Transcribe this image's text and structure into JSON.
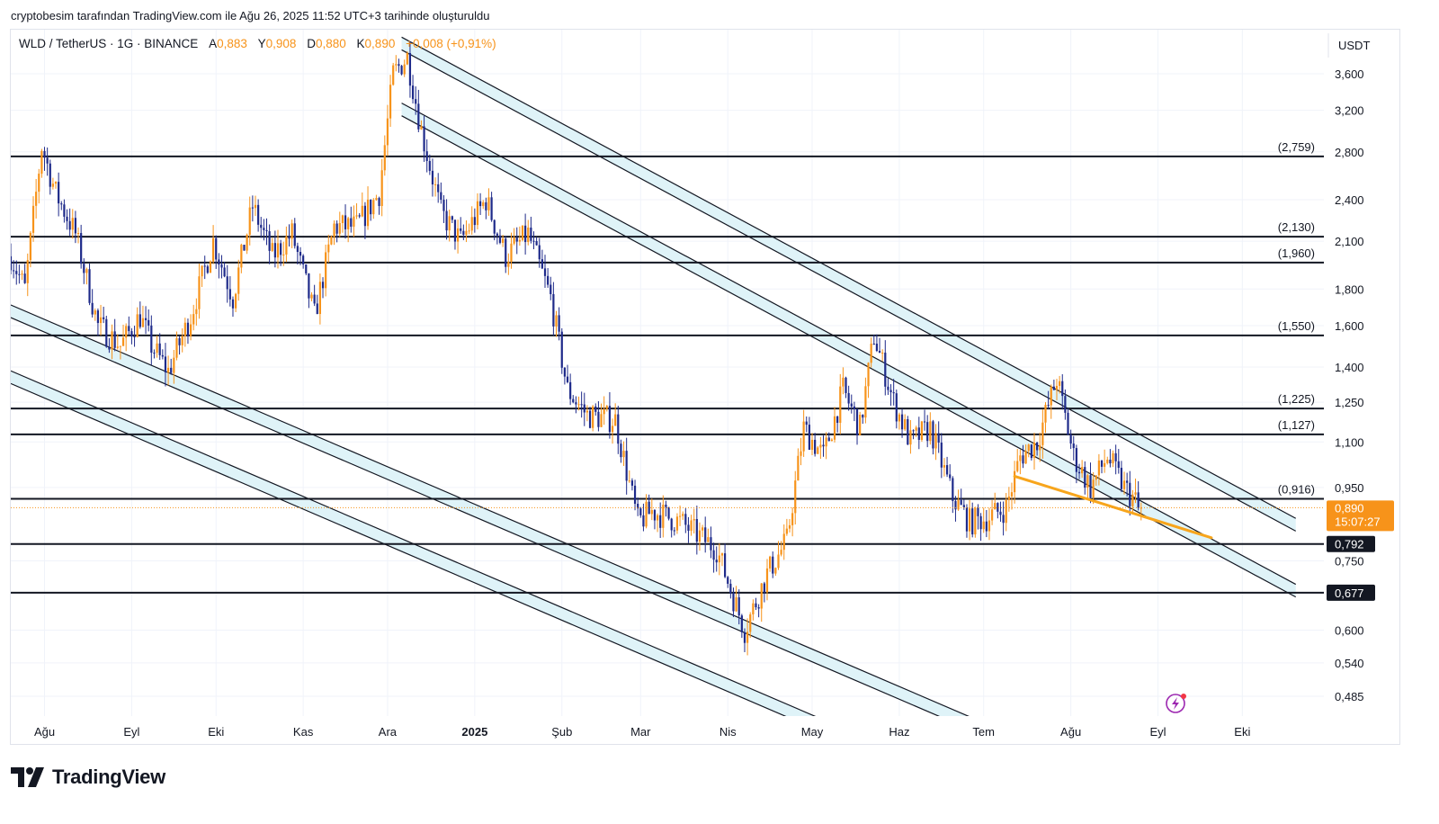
{
  "attribution": "cryptobesim tarafından TradingView.com ile Ağu 26, 2025 11:52 UTC+3 tarihinde oluşturuldu",
  "legend": {
    "symbol": "WLD / TetherUS · 1G · BINANCE",
    "open_label": "A",
    "open": "0,883",
    "high_label": "Y",
    "high": "0,908",
    "low_label": "D",
    "low": "0,880",
    "close_label": "K",
    "close": "0,890",
    "change": "+0,008 (+0,91%)"
  },
  "brand": {
    "name": "TradingView",
    "icon": "tradingview-logo-icon"
  },
  "colors": {
    "up": "#f7931a",
    "down": "#1e2a8a",
    "channel_fill": "#dff3f8",
    "trendline": "#f7a51c",
    "price_tag": "#f7931a"
  },
  "chart_data": {
    "type": "candlestick",
    "currency": "USDT",
    "scale": "log",
    "ylim": [
      0.45,
      4.1
    ],
    "y_ticks": [
      {
        "value": 3.6,
        "label": "3,600"
      },
      {
        "value": 3.2,
        "label": "3,200"
      },
      {
        "value": 2.8,
        "label": "2,800"
      },
      {
        "value": 2.4,
        "label": "2,400"
      },
      {
        "value": 2.1,
        "label": "2,100"
      },
      {
        "value": 1.8,
        "label": "1,800"
      },
      {
        "value": 1.6,
        "label": "1,600"
      },
      {
        "value": 1.4,
        "label": "1,400"
      },
      {
        "value": 1.25,
        "label": "1,250"
      },
      {
        "value": 1.1,
        "label": "1,100"
      },
      {
        "value": 0.95,
        "label": "0,950"
      },
      {
        "value": 0.75,
        "label": "0,750"
      },
      {
        "value": 0.6,
        "label": "0,600"
      },
      {
        "value": 0.54,
        "label": "0,540"
      },
      {
        "value": 0.485,
        "label": "0,485"
      }
    ],
    "x_ticks": [
      {
        "date": "2024-08-01",
        "label": "Ağu",
        "bold": false
      },
      {
        "date": "2024-09-01",
        "label": "Eyl",
        "bold": false
      },
      {
        "date": "2024-10-01",
        "label": "Eki",
        "bold": false
      },
      {
        "date": "2024-11-01",
        "label": "Kas",
        "bold": false
      },
      {
        "date": "2024-12-01",
        "label": "Ara",
        "bold": false
      },
      {
        "date": "2025-01-01",
        "label": "2025",
        "bold": true
      },
      {
        "date": "2025-02-01",
        "label": "Şub",
        "bold": false
      },
      {
        "date": "2025-03-01",
        "label": "Mar",
        "bold": false
      },
      {
        "date": "2025-04-01",
        "label": "Nis",
        "bold": false
      },
      {
        "date": "2025-05-01",
        "label": "May",
        "bold": false
      },
      {
        "date": "2025-06-01",
        "label": "Haz",
        "bold": false
      },
      {
        "date": "2025-07-01",
        "label": "Tem",
        "bold": false
      },
      {
        "date": "2025-08-01",
        "label": "Ağu",
        "bold": false
      },
      {
        "date": "2025-09-01",
        "label": "Eyl",
        "bold": false
      },
      {
        "date": "2025-10-01",
        "label": "Eki",
        "bold": false
      }
    ],
    "levels": [
      {
        "value": 2.759,
        "label": "(2,759)"
      },
      {
        "value": 2.13,
        "label": "(2,130)"
      },
      {
        "value": 1.96,
        "label": "(1,960)"
      },
      {
        "value": 1.55,
        "label": "(1,550)"
      },
      {
        "value": 1.225,
        "label": "(1,225)"
      },
      {
        "value": 1.127,
        "label": "(1,127)"
      },
      {
        "value": 0.916,
        "label": "(0,916)"
      },
      {
        "value": 0.792,
        "label": "0,792",
        "tag": true
      },
      {
        "value": 0.677,
        "label": "0,677",
        "tag": true
      }
    ],
    "last_price": {
      "value": 0.89,
      "label": "0,890",
      "countdown": "15:07:27"
    },
    "price_path": [
      {
        "date": "2024-07-20",
        "price": 2.0
      },
      {
        "date": "2024-07-25",
        "price": 1.8
      },
      {
        "date": "2024-07-31",
        "price": 2.85
      },
      {
        "date": "2024-08-05",
        "price": 2.45
      },
      {
        "date": "2024-08-12",
        "price": 2.15
      },
      {
        "date": "2024-08-20",
        "price": 1.6
      },
      {
        "date": "2024-08-28",
        "price": 1.5
      },
      {
        "date": "2024-09-04",
        "price": 1.65
      },
      {
        "date": "2024-09-08",
        "price": 1.5
      },
      {
        "date": "2024-09-14",
        "price": 1.38
      },
      {
        "date": "2024-09-22",
        "price": 1.65
      },
      {
        "date": "2024-09-30",
        "price": 2.1
      },
      {
        "date": "2024-10-07",
        "price": 1.75
      },
      {
        "date": "2024-10-14",
        "price": 2.35
      },
      {
        "date": "2024-10-21",
        "price": 2.0
      },
      {
        "date": "2024-10-28",
        "price": 2.15
      },
      {
        "date": "2024-11-05",
        "price": 1.65
      },
      {
        "date": "2024-11-12",
        "price": 2.2
      },
      {
        "date": "2024-11-20",
        "price": 2.2
      },
      {
        "date": "2024-11-28",
        "price": 2.45
      },
      {
        "date": "2024-12-03",
        "price": 3.6
      },
      {
        "date": "2024-12-08",
        "price": 3.8
      },
      {
        "date": "2024-12-13",
        "price": 3.0
      },
      {
        "date": "2024-12-20",
        "price": 2.3
      },
      {
        "date": "2024-12-27",
        "price": 2.1
      },
      {
        "date": "2025-01-05",
        "price": 2.4
      },
      {
        "date": "2025-01-12",
        "price": 2.0
      },
      {
        "date": "2025-01-20",
        "price": 2.15
      },
      {
        "date": "2025-01-28",
        "price": 1.75
      },
      {
        "date": "2025-02-03",
        "price": 1.3
      },
      {
        "date": "2025-02-10",
        "price": 1.2
      },
      {
        "date": "2025-02-20",
        "price": 1.18
      },
      {
        "date": "2025-02-28",
        "price": 0.85
      },
      {
        "date": "2025-03-05",
        "price": 0.88
      },
      {
        "date": "2025-03-15",
        "price": 0.85
      },
      {
        "date": "2025-03-28",
        "price": 0.78
      },
      {
        "date": "2025-04-07",
        "price": 0.6
      },
      {
        "date": "2025-04-15",
        "price": 0.72
      },
      {
        "date": "2025-04-22",
        "price": 0.8
      },
      {
        "date": "2025-04-28",
        "price": 1.15
      },
      {
        "date": "2025-05-05",
        "price": 1.05
      },
      {
        "date": "2025-05-12",
        "price": 1.3
      },
      {
        "date": "2025-05-18",
        "price": 1.15
      },
      {
        "date": "2025-05-23",
        "price": 1.55
      },
      {
        "date": "2025-05-30",
        "price": 1.25
      },
      {
        "date": "2025-06-05",
        "price": 1.1
      },
      {
        "date": "2025-06-12",
        "price": 1.15
      },
      {
        "date": "2025-06-20",
        "price": 0.92
      },
      {
        "date": "2025-06-26",
        "price": 0.85
      },
      {
        "date": "2025-07-02",
        "price": 0.86
      },
      {
        "date": "2025-07-09",
        "price": 0.89
      },
      {
        "date": "2025-07-14",
        "price": 1.05
      },
      {
        "date": "2025-07-20",
        "price": 1.1
      },
      {
        "date": "2025-07-27",
        "price": 1.35
      },
      {
        "date": "2025-08-02",
        "price": 1.05
      },
      {
        "date": "2025-08-08",
        "price": 0.95
      },
      {
        "date": "2025-08-14",
        "price": 1.05
      },
      {
        "date": "2025-08-20",
        "price": 0.95
      },
      {
        "date": "2025-08-26",
        "price": 0.89
      }
    ],
    "channels": [
      {
        "name": "upper-channel",
        "from": {
          "date": "2024-12-06",
          "price": 4.05
        },
        "to": {
          "date": "2025-10-20",
          "price": 0.86
        },
        "width_ratio": 0.96
      },
      {
        "name": "lower-channel",
        "from": {
          "date": "2024-07-20",
          "price": 1.71
        },
        "to": {
          "date": "2025-07-10",
          "price": 0.43
        },
        "width_ratio": 0.96
      }
    ],
    "trendline": {
      "from": {
        "date": "2025-07-12",
        "price": 0.985
      },
      "to": {
        "date": "2025-09-20",
        "price": 0.808
      }
    }
  }
}
